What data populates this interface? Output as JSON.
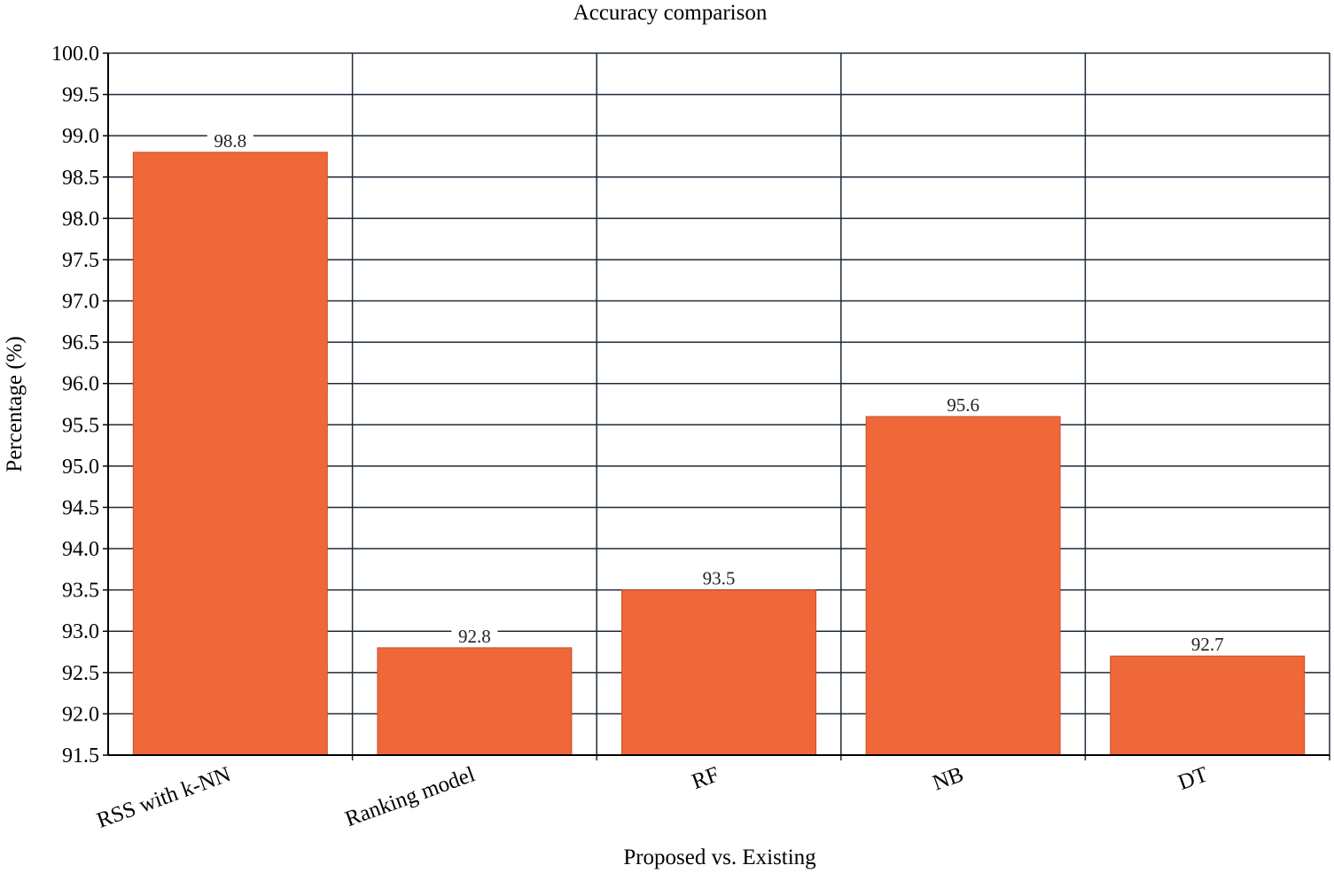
{
  "chart_data": {
    "type": "bar",
    "title": "Accuracy comparison",
    "xlabel": "Proposed vs. Existing",
    "ylabel": "Percentage (%)",
    "categories": [
      "RSS with k-NN",
      "Ranking model",
      "RF",
      "NB",
      "DT"
    ],
    "values": [
      98.8,
      92.8,
      93.5,
      95.6,
      92.7
    ],
    "data_labels": [
      "98.8",
      "92.8",
      "93.5",
      "95.6",
      "92.7"
    ],
    "ylim": [
      91.5,
      100.0
    ],
    "yticks": [
      "91.5",
      "92.0",
      "92.5",
      "93.0",
      "93.5",
      "94.0",
      "94.5",
      "95.0",
      "95.5",
      "96.0",
      "96.5",
      "97.0",
      "97.5",
      "98.0",
      "98.5",
      "99.0",
      "99.5",
      "100.0"
    ],
    "grid": true,
    "legend": "none",
    "colors": {
      "bar": "#ef683a",
      "bar_edge": "#c8502a",
      "grid": "#1f2a3a"
    }
  }
}
